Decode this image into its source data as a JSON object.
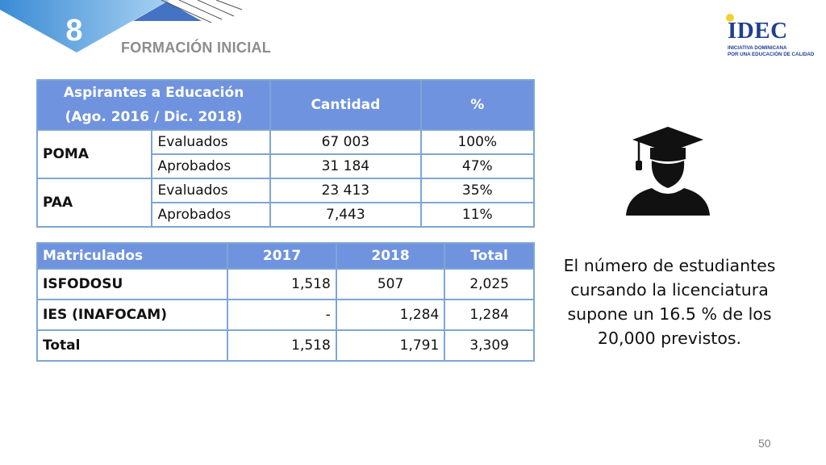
{
  "header": {
    "section_number": "8",
    "section_title": "FORMACIÓN INICIAL"
  },
  "logo": {
    "wordmark": "IDEC",
    "line1": "INICIATIVA DOMINICANA",
    "line2": "POR UNA EDUCACIÓN DE CALIDAD"
  },
  "table1": {
    "headers": {
      "col1_line1": "Aspirantes a Educación",
      "col1_line2": "(Ago. 2016 / Dic. 2018)",
      "col2": "Cantidad",
      "col3": "%"
    },
    "groups": [
      {
        "name": "POMA",
        "rows": [
          {
            "label": "Evaluados",
            "cantidad": "67 003",
            "pct": "100%"
          },
          {
            "label": "Aprobados",
            "cantidad": "31 184",
            "pct": "47%"
          }
        ]
      },
      {
        "name": "PAA",
        "rows": [
          {
            "label": "Evaluados",
            "cantidad": "23 413",
            "pct": "35%"
          },
          {
            "label": "Aprobados",
            "cantidad": "7,443",
            "pct": "11%"
          }
        ]
      }
    ]
  },
  "table2": {
    "headers": [
      "Matriculados",
      "2017",
      "2018",
      "Total"
    ],
    "rows": [
      [
        "ISFODOSU",
        "1,518",
        "507",
        "2,025"
      ],
      [
        "IES (INAFOCAM)",
        "-",
        "1,284",
        "1,284"
      ],
      [
        "Total",
        "1,518",
        "1,791",
        "3,309"
      ]
    ]
  },
  "note": {
    "text": "El número de estudiantes cursando la licenciatura supone un 16.5 % de los 20,000 previstos."
  },
  "footer": {
    "page_number": "50"
  },
  "icons": {
    "graduate": "graduate-icon",
    "logo_star": "star-icon"
  },
  "colors": {
    "table_header": "#6f93de",
    "table_border": "#7ea6d3",
    "brand_blue": "#1f3f8f",
    "corner_blue": "#3a8fd6"
  }
}
